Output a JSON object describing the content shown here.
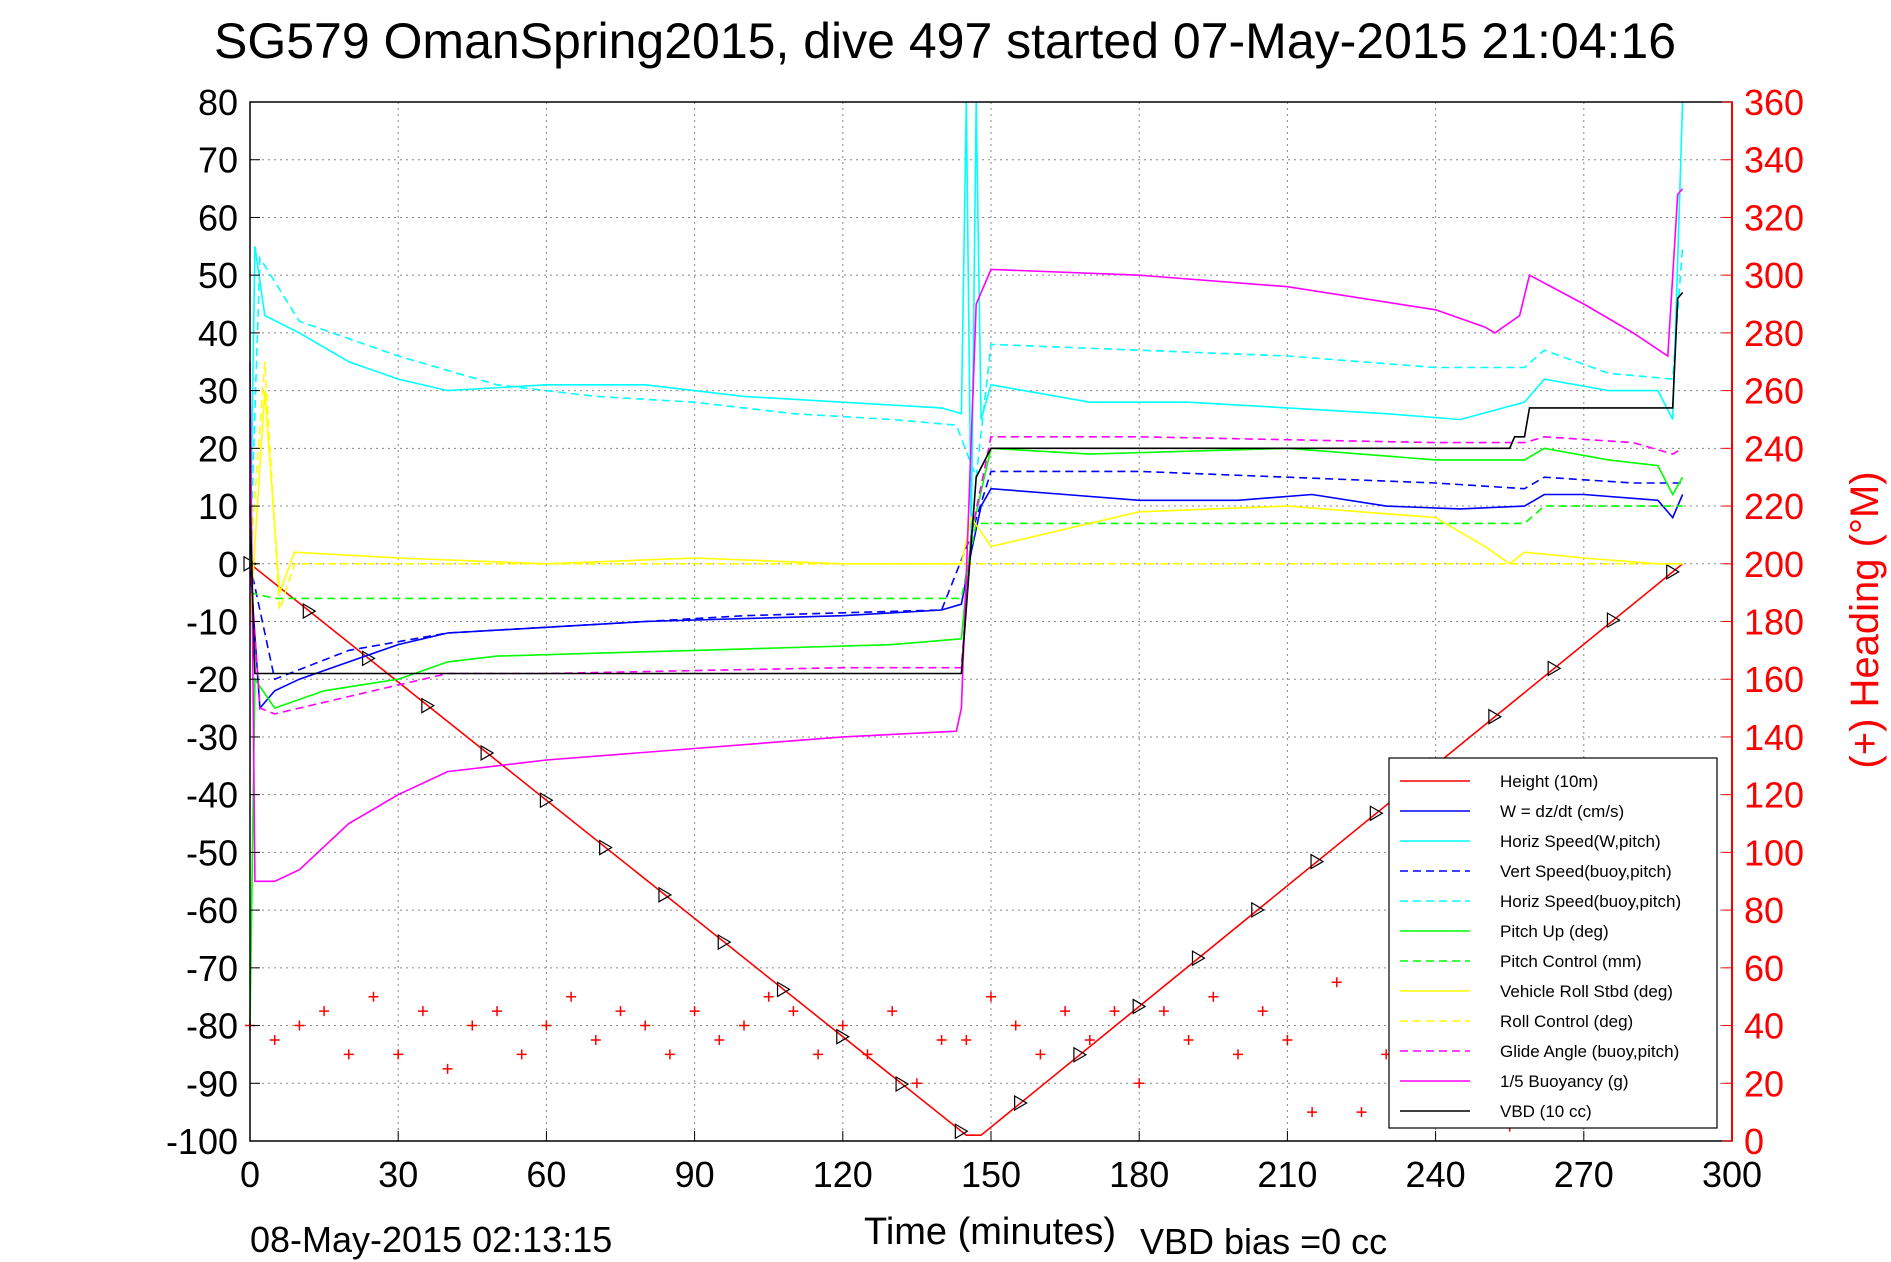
{
  "title": "SG579 OmanSpring2015, dive 497 started 07-May-2015 21:04:16",
  "footer": {
    "end_time": "08-May-2015 02:13:15",
    "xlabel": "Time (minutes)",
    "vbd_bias": "VBD bias =0 cc"
  },
  "chart_data": {
    "type": "line",
    "title": "SG579 OmanSpring2015, dive 497 started 07-May-2015 21:04:16",
    "xlabel": "Time (minutes)",
    "ylabel": "",
    "y2label": "(+) Heading (°M)",
    "xlim": [
      0,
      300
    ],
    "ylim": [
      -100,
      80
    ],
    "y2lim": [
      0,
      360
    ],
    "grid": true,
    "legend_position": "bottom-right",
    "x_ticks": [
      "0",
      "30",
      "60",
      "90",
      "120",
      "150",
      "180",
      "210",
      "240",
      "270",
      "300"
    ],
    "y_ticks": [
      "80",
      "70",
      "60",
      "50",
      "40",
      "30",
      "20",
      "10",
      "0",
      "-10",
      "-20",
      "-30",
      "-40",
      "-50",
      "-60",
      "-70",
      "-80",
      "-90",
      "-100"
    ],
    "y2_ticks": [
      "360",
      "340",
      "320",
      "300",
      "280",
      "260",
      "240",
      "220",
      "200",
      "180",
      "160",
      "140",
      "120",
      "100",
      "80",
      "60",
      "40",
      "20",
      "0"
    ],
    "series": [
      {
        "name": "Height (10m)",
        "color": "#ff0000",
        "style": "solid",
        "x": [
          0,
          145,
          148,
          290
        ],
        "y": [
          0,
          -99,
          -99,
          0
        ]
      },
      {
        "name": "W = dz/dt (cm/s)",
        "color": "#0000ff",
        "style": "solid",
        "x": [
          0,
          2,
          5,
          10,
          20,
          30,
          40,
          60,
          80,
          100,
          120,
          140,
          144,
          146,
          148,
          150,
          165,
          180,
          200,
          215,
          230,
          245,
          258,
          262,
          270,
          285,
          288,
          290
        ],
        "y": [
          0,
          -25,
          -22,
          -20,
          -17,
          -14,
          -12,
          -11,
          -10,
          -9.5,
          -9,
          -8,
          -7,
          2,
          10,
          13,
          12,
          11,
          11,
          12,
          10,
          9.5,
          10,
          12,
          12,
          11,
          8,
          12
        ]
      },
      {
        "name": "Horiz Speed(W,pitch)",
        "color": "#00ffff",
        "style": "solid",
        "x": [
          0,
          1,
          3,
          10,
          20,
          30,
          40,
          60,
          80,
          100,
          120,
          140,
          144,
          145,
          146,
          147,
          148,
          150,
          170,
          190,
          210,
          230,
          245,
          258,
          262,
          275,
          285,
          288,
          290
        ],
        "y": [
          0,
          55,
          43,
          40,
          35,
          32,
          30,
          31,
          31,
          29,
          28,
          27,
          26,
          80,
          5,
          80,
          25,
          31,
          28,
          28,
          27,
          26,
          25,
          28,
          32,
          30,
          30,
          25,
          80
        ]
      },
      {
        "name": "Vert Speed(buoy,pitch)",
        "color": "#0000ff",
        "style": "dashed",
        "x": [
          0,
          5,
          20,
          40,
          60,
          80,
          100,
          120,
          140,
          146,
          150,
          180,
          210,
          240,
          258,
          262,
          280,
          290
        ],
        "y": [
          0,
          -20,
          -15,
          -12,
          -11,
          -10,
          -9,
          -8.5,
          -8,
          5,
          16,
          16,
          15,
          14,
          13,
          15,
          14,
          14
        ]
      },
      {
        "name": "Horiz Speed(buoy,pitch)",
        "color": "#00ffff",
        "style": "dashed",
        "x": [
          0,
          2,
          10,
          30,
          50,
          70,
          90,
          110,
          130,
          143,
          147,
          150,
          180,
          210,
          240,
          258,
          262,
          275,
          288,
          290
        ],
        "y": [
          0,
          53,
          42,
          36,
          31,
          29,
          28,
          26,
          25,
          24,
          15,
          38,
          37,
          36,
          34,
          34,
          37,
          33,
          32,
          55
        ]
      },
      {
        "name": "Pitch Up (deg)",
        "color": "#00ff00",
        "style": "solid",
        "x": [
          0,
          1,
          5,
          15,
          30,
          40,
          50,
          70,
          90,
          110,
          130,
          144,
          146,
          150,
          170,
          190,
          210,
          240,
          258,
          262,
          275,
          285,
          288,
          290
        ],
        "y": [
          -80,
          -20,
          -25,
          -22,
          -20,
          -17,
          -16,
          -15.5,
          -15,
          -14.5,
          -14,
          -13,
          5,
          20,
          19,
          19.5,
          20,
          18,
          18,
          20,
          18,
          17,
          12,
          15
        ]
      },
      {
        "name": "Pitch Control (mm)",
        "color": "#00ff00",
        "style": "dashed",
        "x": [
          0,
          5,
          90,
          144,
          147,
          258,
          262,
          290
        ],
        "y": [
          -5,
          -6,
          -6,
          -6,
          7,
          7,
          10,
          10
        ]
      },
      {
        "name": "Vehicle Roll Stbd (deg)",
        "color": "#ffff00",
        "style": "solid",
        "x": [
          0,
          3,
          6,
          9,
          30,
          60,
          90,
          120,
          144,
          146,
          150,
          180,
          210,
          240,
          250,
          255,
          258,
          270,
          285,
          290
        ],
        "y": [
          -10,
          30,
          -5,
          2,
          1,
          0,
          1,
          0,
          0,
          8,
          3,
          9,
          10,
          8,
          3,
          0,
          2,
          1,
          0,
          0
        ]
      },
      {
        "name": "Roll Control (deg)",
        "color": "#ffff00",
        "style": "dashed",
        "x": [
          0,
          3,
          6,
          9,
          144,
          147,
          290
        ],
        "y": [
          0,
          35,
          -8,
          0,
          0,
          0,
          0
        ]
      },
      {
        "name": "Glide Angle (buoy,pitch)",
        "color": "#ff00ff",
        "style": "dashed",
        "x": [
          0,
          2,
          5,
          15,
          30,
          40,
          60,
          90,
          120,
          144,
          146,
          150,
          180,
          210,
          240,
          258,
          262,
          280,
          288,
          290
        ],
        "y": [
          0,
          -25,
          -26,
          -24,
          -21,
          -19,
          -19,
          -18.5,
          -18,
          -18,
          5,
          22,
          22,
          21.5,
          21,
          21,
          22,
          21,
          19,
          20
        ]
      },
      {
        "name": "1/5 Buoyancy (g)",
        "color": "#ff00ff",
        "style": "solid",
        "x": [
          0,
          1,
          5,
          10,
          20,
          30,
          40,
          60,
          90,
          120,
          143,
          144,
          147,
          150,
          180,
          210,
          240,
          250,
          252,
          257,
          259,
          270,
          280,
          287,
          289,
          290
        ],
        "y": [
          35,
          -55,
          -55,
          -53,
          -45,
          -40,
          -36,
          -34,
          -32,
          -30,
          -29,
          -25,
          45,
          51,
          50,
          48,
          44,
          41,
          40,
          43,
          50,
          45,
          40,
          36,
          64,
          65
        ]
      },
      {
        "name": "VBD (10 cc)",
        "color": "#000000",
        "style": "solid",
        "x": [
          0,
          1,
          2,
          144,
          147,
          150,
          255,
          256,
          258,
          259,
          288,
          289,
          290
        ],
        "y": [
          10,
          -19,
          -19,
          -19,
          15,
          20,
          20,
          22,
          22,
          27,
          27,
          46,
          47
        ]
      },
      {
        "name": "Heading",
        "color": "#ff0000",
        "style": "markers-plus",
        "axis": "right",
        "x": [
          0,
          5,
          10,
          15,
          20,
          25,
          30,
          35,
          40,
          45,
          50,
          55,
          60,
          65,
          70,
          75,
          80,
          85,
          90,
          95,
          100,
          105,
          110,
          115,
          120,
          125,
          130,
          135,
          140,
          145,
          150,
          155,
          160,
          165,
          170,
          175,
          180,
          185,
          190,
          195,
          200,
          205,
          210,
          215,
          220,
          225,
          230,
          235,
          240,
          245,
          250,
          255,
          260,
          265,
          270,
          275,
          280,
          285,
          290
        ],
        "y": [
          40,
          35,
          40,
          45,
          30,
          50,
          30,
          45,
          25,
          40,
          45,
          30,
          40,
          50,
          35,
          45,
          40,
          30,
          45,
          35,
          40,
          50,
          45,
          30,
          40,
          30,
          45,
          20,
          35,
          35,
          50,
          40,
          30,
          45,
          35,
          45,
          20,
          45,
          35,
          50,
          30,
          45,
          35,
          10,
          55,
          10,
          30,
          40,
          25,
          45,
          35,
          5,
          40,
          30,
          45,
          35,
          25,
          40,
          35
        ]
      }
    ],
    "legend": [
      "Height (10m)",
      "W = dz/dt (cm/s)",
      "Horiz Speed(W,pitch)",
      "Vert Speed(buoy,pitch)",
      "Horiz Speed(buoy,pitch)",
      "Pitch Up (deg)",
      "Pitch Control (mm)",
      "Vehicle Roll Stbd (deg)",
      "Roll Control (deg)",
      "Glide Angle (buoy,pitch)",
      "1/5 Buoyancy (g)",
      "VBD (10 cc)"
    ]
  }
}
